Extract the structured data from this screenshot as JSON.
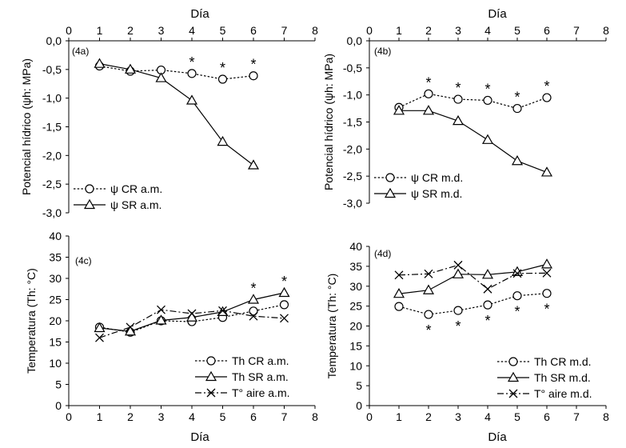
{
  "chart_data": [
    {
      "type": "line",
      "panel_label": "(4a)",
      "xlabel": "Día",
      "xlabel_position": "top",
      "ylabel": "Potencial hídrico  (ψh: MPa)",
      "xlim": [
        0,
        8
      ],
      "ylim": [
        -3.0,
        0.0
      ],
      "x_ticks": [
        "0",
        "1",
        "2",
        "3",
        "4",
        "5",
        "6",
        "7",
        "8"
      ],
      "y_ticks": [
        "0,0",
        "-0,5",
        "-1,0",
        "-1,5",
        "-2,0",
        "-2,5",
        "-3,0"
      ],
      "series": [
        {
          "name": "ψ CR a.m.",
          "marker": "circle",
          "dash": "dotted",
          "x": [
            1,
            2,
            3,
            4,
            5,
            6
          ],
          "y": [
            -0.44,
            -0.53,
            -0.51,
            -0.57,
            -0.67,
            -0.61
          ]
        },
        {
          "name": "ψ SR a.m.",
          "marker": "triangle",
          "dash": "solid",
          "x": [
            1,
            2,
            3,
            4,
            5,
            6
          ],
          "y": [
            -0.4,
            -0.5,
            -0.65,
            -1.04,
            -1.76,
            -2.17
          ]
        }
      ],
      "annotations": [
        {
          "text": "*",
          "x": 4,
          "y": -0.57
        },
        {
          "text": "*",
          "x": 5,
          "y": -0.67
        },
        {
          "text": "*",
          "x": 6,
          "y": -0.61
        }
      ],
      "legend_position": "bottom-left"
    },
    {
      "type": "line",
      "panel_label": "(4b)",
      "xlabel": "Día",
      "xlabel_position": "top",
      "ylabel": "Potencial hídrico  (ψh: MPa)",
      "xlim": [
        0,
        8
      ],
      "ylim": [
        -3.0,
        0.0
      ],
      "x_ticks": [
        "0",
        "1",
        "2",
        "3",
        "4",
        "5",
        "6",
        "7",
        "8"
      ],
      "y_ticks": [
        "0,0",
        "-0,5",
        "-1,0",
        "-1,5",
        "-2,0",
        "-2,5",
        "-3,0"
      ],
      "series": [
        {
          "name": "ψ CR m.d.",
          "marker": "circle",
          "dash": "dotted",
          "x": [
            1,
            2,
            3,
            4,
            5,
            6
          ],
          "y": [
            -1.23,
            -0.98,
            -1.08,
            -1.1,
            -1.25,
            -1.05
          ]
        },
        {
          "name": "ψ SR m.d.",
          "marker": "triangle",
          "dash": "solid",
          "x": [
            1,
            2,
            3,
            4,
            5,
            6
          ],
          "y": [
            -1.29,
            -1.29,
            -1.48,
            -1.83,
            -2.22,
            -2.43
          ]
        }
      ],
      "annotations": [
        {
          "text": "*",
          "x": 2,
          "y": -0.98
        },
        {
          "text": "*",
          "x": 3,
          "y": -1.08
        },
        {
          "text": "*",
          "x": 4,
          "y": -1.1
        },
        {
          "text": "*",
          "x": 5,
          "y": -1.25
        },
        {
          "text": "*",
          "x": 6,
          "y": -1.05
        }
      ],
      "legend_position": "bottom-left"
    },
    {
      "type": "line",
      "panel_label": "(4c)",
      "xlabel": "Día",
      "xlabel_position": "bottom",
      "ylabel": "Temperatura (Th: °C)",
      "xlim": [
        0,
        8
      ],
      "ylim": [
        0,
        40
      ],
      "x_ticks": [
        "0",
        "1",
        "2",
        "3",
        "4",
        "5",
        "6",
        "7",
        "8"
      ],
      "y_ticks": [
        "0",
        "5",
        "10",
        "15",
        "20",
        "25",
        "30",
        "35",
        "40"
      ],
      "series": [
        {
          "name": "Th CR a.m.",
          "marker": "circle",
          "dash": "dotted",
          "x": [
            1,
            2,
            3,
            4,
            5,
            6,
            7
          ],
          "y": [
            18.5,
            17.3,
            20.0,
            19.8,
            20.8,
            22.3,
            23.8
          ]
        },
        {
          "name": "Th SR a.m.",
          "marker": "triangle",
          "dash": "solid",
          "x": [
            1,
            2,
            3,
            4,
            5,
            6,
            7
          ],
          "y": [
            18.3,
            17.5,
            20.1,
            20.8,
            22.1,
            25.0,
            26.6
          ]
        },
        {
          "name": "T° aire a.m.",
          "marker": "cross",
          "dash": "dashdot",
          "x": [
            1,
            2,
            3,
            4,
            5,
            6,
            7
          ],
          "y": [
            16.0,
            18.5,
            22.6,
            21.7,
            22.4,
            21.1,
            20.6
          ]
        }
      ],
      "annotations": [
        {
          "text": "*",
          "x": 6,
          "y": 25.0
        },
        {
          "text": "*",
          "x": 7,
          "y": 26.6
        }
      ],
      "legend_position": "bottom-right"
    },
    {
      "type": "line",
      "panel_label": "(4d)",
      "xlabel": "Día",
      "xlabel_position": "bottom",
      "ylabel": "Temperatura (Th: °C)",
      "xlim": [
        0,
        8
      ],
      "ylim": [
        0,
        40
      ],
      "x_ticks": [
        "0",
        "1",
        "2",
        "3",
        "4",
        "5",
        "6",
        "7",
        "8"
      ],
      "y_ticks": [
        "0",
        "5",
        "10",
        "15",
        "20",
        "25",
        "30",
        "35",
        "40"
      ],
      "series": [
        {
          "name": "Th CR m.d.",
          "marker": "circle",
          "dash": "dotted",
          "x": [
            1,
            2,
            3,
            4,
            5,
            6
          ],
          "y": [
            24.9,
            22.9,
            23.9,
            25.3,
            27.6,
            28.2
          ]
        },
        {
          "name": "Th SR m.d.",
          "marker": "triangle",
          "dash": "solid",
          "x": [
            1,
            2,
            3,
            4,
            5,
            6
          ],
          "y": [
            28.1,
            29.0,
            33.0,
            32.9,
            33.6,
            35.5
          ]
        },
        {
          "name": "T° aire m.d.",
          "marker": "cross",
          "dash": "dashdot",
          "x": [
            1,
            2,
            3,
            4,
            5,
            6
          ],
          "y": [
            32.8,
            33.1,
            35.3,
            29.3,
            33.2,
            33.3
          ]
        }
      ],
      "annotations": [
        {
          "text": "*",
          "x": 2,
          "y": 22.9
        },
        {
          "text": "*",
          "x": 3,
          "y": 23.9
        },
        {
          "text": "*",
          "x": 4,
          "y": 25.3
        },
        {
          "text": "*",
          "x": 5,
          "y": 27.6
        },
        {
          "text": "*",
          "x": 6,
          "y": 28.2
        }
      ],
      "annotation_side": "below",
      "legend_position": "bottom-right"
    }
  ]
}
